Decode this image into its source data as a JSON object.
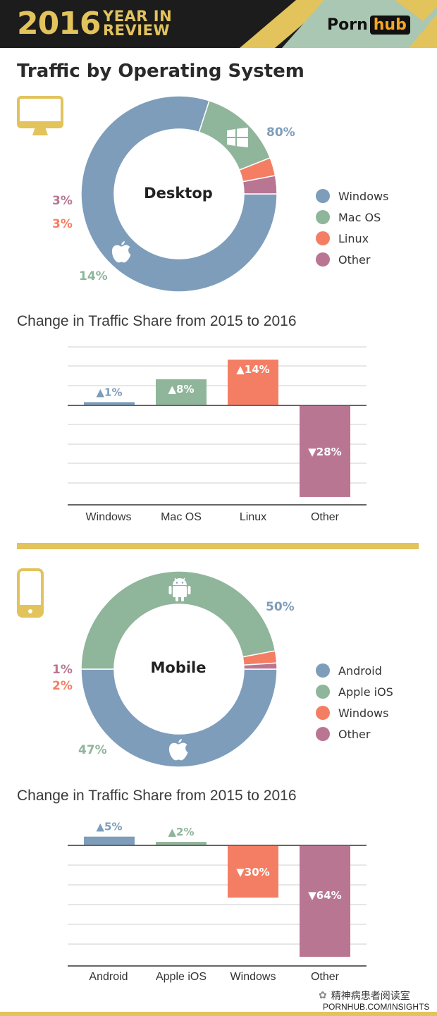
{
  "header": {
    "year": "2016",
    "year_in_review": [
      "YEAR IN",
      "REVIEW"
    ],
    "logo_left": "Porn",
    "logo_right": "hub"
  },
  "page_title": "Traffic by Operating System",
  "colors": {
    "blue": "#7e9dba",
    "green": "#8fb59b",
    "orange": "#f47e63",
    "purple": "#b97693",
    "gold": "#e2c35c"
  },
  "chart_data": [
    {
      "type": "pie",
      "center_label": "Desktop",
      "categories": [
        "Windows",
        "Mac OS",
        "Linux",
        "Other"
      ],
      "values": [
        80,
        14,
        3,
        3
      ],
      "labels": [
        "80%",
        "14%",
        "3%",
        "3%"
      ],
      "colors": [
        "#7e9dba",
        "#8fb59b",
        "#f47e63",
        "#b97693"
      ],
      "legend": [
        "Windows",
        "Mac OS",
        "Linux",
        "Other"
      ],
      "icons": [
        "windows-icon",
        "apple-icon"
      ]
    },
    {
      "type": "bar",
      "title": "Change in Traffic Share from 2015 to 2016",
      "categories": [
        "Windows",
        "Mac OS",
        "Linux",
        "Other"
      ],
      "values": [
        1,
        8,
        14,
        -28
      ],
      "labels": [
        "▲1%",
        "▲8%",
        "▲14%",
        "▼28%"
      ],
      "colors": [
        "#7e9dba",
        "#8fb59b",
        "#f47e63",
        "#b97693"
      ],
      "grid": true
    },
    {
      "type": "pie",
      "center_label": "Mobile",
      "categories": [
        "Android",
        "Apple iOS",
        "Windows",
        "Other"
      ],
      "values": [
        50,
        47,
        2,
        1
      ],
      "labels": [
        "50%",
        "47%",
        "2%",
        "1%"
      ],
      "colors": [
        "#7e9dba",
        "#8fb59b",
        "#f47e63",
        "#b97693"
      ],
      "legend": [
        "Android",
        "Apple iOS",
        "Windows",
        "Other"
      ],
      "icons": [
        "android-icon",
        "apple-icon"
      ]
    },
    {
      "type": "bar",
      "title": "Change in Traffic Share from 2015 to 2016",
      "categories": [
        "Android",
        "Apple iOS",
        "Windows",
        "Other"
      ],
      "values": [
        5,
        2,
        -30,
        -64
      ],
      "labels": [
        "▲5%",
        "▲2%",
        "▼30%",
        "▼64%"
      ],
      "colors": [
        "#7e9dba",
        "#8fb59b",
        "#f47e63",
        "#b97693"
      ],
      "grid": true
    }
  ],
  "footer": {
    "url": "PORNHUB.COM/INSIGHTS",
    "watermark": "精神病患者阅读室"
  }
}
